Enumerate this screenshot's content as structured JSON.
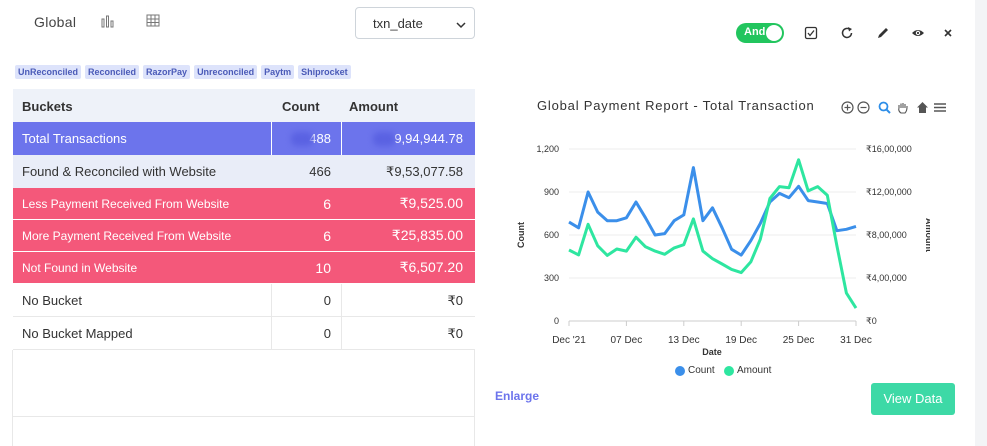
{
  "header": {
    "title": "Global",
    "date_field": "txn_date",
    "toggle_label": "And",
    "icons": [
      "bar-chart-icon",
      "table-icon",
      "checkbox-icon",
      "refresh-icon",
      "edit-icon",
      "eye-icon",
      "close-icon"
    ]
  },
  "tags": [
    "UnReconciled",
    "Reconciled",
    "RazorPay",
    "Unreconciled",
    "Paytm",
    "Shiprocket"
  ],
  "table": {
    "headers": [
      "Buckets",
      "Count",
      "Amount"
    ],
    "rows": [
      {
        "bucket": "Total Transactions",
        "count": "488",
        "amount": "9,94,944.78"
      },
      {
        "bucket": "Found & Reconciled with Website",
        "count": "466",
        "amount": "₹9,53,077.58"
      },
      {
        "bucket": "Less Payment Received From Website",
        "count": "6",
        "amount": "₹9,525.00"
      },
      {
        "bucket": "More Payment Received From Website",
        "count": "6",
        "amount": "₹25,835.00"
      },
      {
        "bucket": "Not Found in Website",
        "count": "10",
        "amount": "₹6,507.20"
      },
      {
        "bucket": "No Bucket",
        "count": "0",
        "amount": "₹0"
      },
      {
        "bucket": "No Bucket Mapped",
        "count": "0",
        "amount": "₹0"
      }
    ]
  },
  "colors": {
    "total_row": "#6c74ec",
    "found_row": "#e9edf8",
    "alert_row": "#f4587a",
    "count_series": "#3b8fea",
    "amount_series": "#2ee6a0",
    "button": "#3dd9a6"
  },
  "chart_data": {
    "type": "line",
    "title": "Global Payment Report - Total Transaction",
    "xlabel": "Date",
    "ylabel": "Count",
    "y2label": "Amount",
    "x_ticks": [
      "Dec '21",
      "07 Dec",
      "13 Dec",
      "19 Dec",
      "25 Dec",
      "31 Dec"
    ],
    "y_ticks": [
      "0",
      "300",
      "600",
      "900",
      "1,200"
    ],
    "y2_ticks": [
      "₹0",
      "₹4,00,000",
      "₹8,00,000",
      "₹12,00,000",
      "₹16,00,000"
    ],
    "ylim": [
      0,
      1200
    ],
    "y2lim": [
      0,
      1600000
    ],
    "x_days": [
      1,
      2,
      3,
      4,
      5,
      6,
      7,
      8,
      9,
      10,
      11,
      12,
      13,
      14,
      15,
      16,
      17,
      18,
      19,
      20,
      21,
      22,
      23,
      24,
      25,
      26,
      27,
      28,
      29,
      30,
      31
    ],
    "series": [
      {
        "name": "Count",
        "values": [
          690,
          650,
          900,
          760,
          700,
          700,
          720,
          830,
          720,
          600,
          610,
          700,
          740,
          1070,
          700,
          790,
          650,
          500,
          460,
          560,
          680,
          830,
          890,
          860,
          940,
          840,
          830,
          820,
          630,
          640,
          660
        ]
      },
      {
        "name": "Amount",
        "values": [
          660000,
          615000,
          900000,
          700000,
          610000,
          670000,
          650000,
          780000,
          690000,
          650000,
          620000,
          680000,
          710000,
          950000,
          650000,
          580000,
          530000,
          480000,
          450000,
          550000,
          760000,
          1140000,
          1250000,
          1240000,
          1500000,
          1210000,
          1250000,
          1170000,
          700000,
          260000,
          120000
        ]
      }
    ],
    "legend": "bottom"
  },
  "footer": {
    "enlarge_label": "Enlarge",
    "view_label": "View Data"
  }
}
